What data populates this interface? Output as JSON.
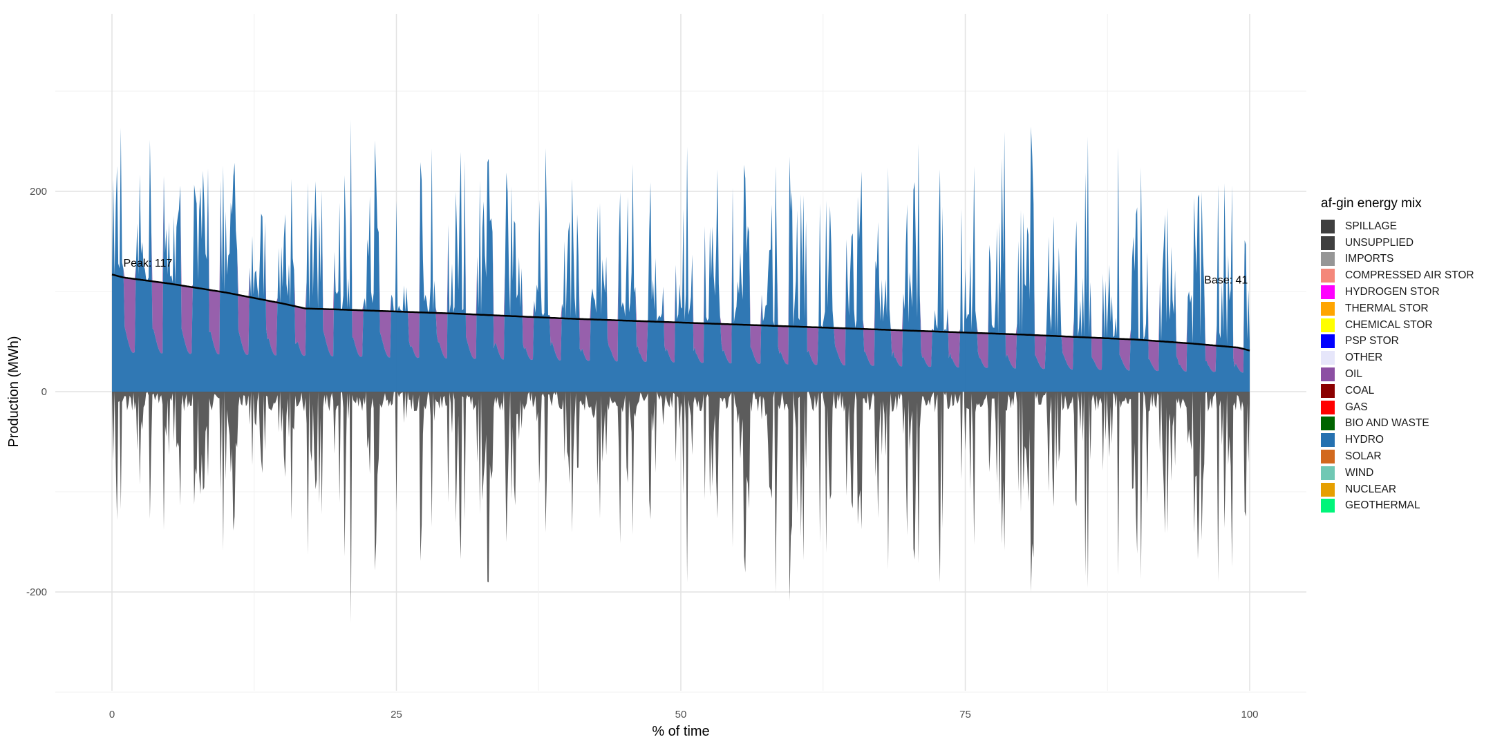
{
  "chart_data": {
    "type": "area",
    "title": "",
    "xlabel": "% of time",
    "ylabel": "Production (MWh)",
    "xlim": [
      0,
      100
    ],
    "ylim": [
      -300,
      300
    ],
    "x_ticks": [
      0,
      25,
      50,
      75,
      100
    ],
    "y_ticks": [
      -200,
      0,
      200
    ],
    "grid": true,
    "legend_title": "af-gin energy mix",
    "legend_position": "right",
    "legend": [
      {
        "name": "SPILLAGE",
        "color": "#3f3f3f"
      },
      {
        "name": "UNSUPPLIED",
        "color": "#3f3f3f"
      },
      {
        "name": "IMPORTS",
        "color": "#969696"
      },
      {
        "name": "COMPRESSED AIR STOR",
        "color": "#f4877a"
      },
      {
        "name": "HYDROGEN STOR",
        "color": "#ff00ff"
      },
      {
        "name": "THERMAL STOR",
        "color": "#ffa500"
      },
      {
        "name": "CHEMICAL STOR",
        "color": "#ffff00"
      },
      {
        "name": "PSP STOR",
        "color": "#0000ff"
      },
      {
        "name": "OTHER",
        "color": "#e6e6fa"
      },
      {
        "name": "OIL",
        "color": "#8c4fa3"
      },
      {
        "name": "COAL",
        "color": "#8b0000"
      },
      {
        "name": "GAS",
        "color": "#ff0000"
      },
      {
        "name": "BIO AND WASTE",
        "color": "#006400"
      },
      {
        "name": "HYDRO",
        "color": "#2571b0"
      },
      {
        "name": "SOLAR",
        "color": "#d2691e"
      },
      {
        "name": "WIND",
        "color": "#70c8b4"
      },
      {
        "name": "NUCLEAR",
        "color": "#e69f00"
      },
      {
        "name": "GEOTHERMAL",
        "color": "#00f57a"
      }
    ],
    "load_curve": {
      "name": "load",
      "x": [
        0,
        1,
        5,
        10,
        15,
        17,
        20,
        25,
        30,
        40,
        50,
        55,
        60,
        70,
        80,
        90,
        95,
        99,
        100
      ],
      "y": [
        117,
        114,
        108,
        99,
        88,
        83,
        82,
        80,
        78,
        73,
        69,
        67,
        65,
        61,
        57,
        52,
        48,
        44,
        41
      ]
    },
    "annotations": [
      {
        "text": "Peak: 117",
        "x": 1,
        "y": 125
      },
      {
        "text": "Base: 41",
        "x": 96,
        "y": 108
      }
    ],
    "cycles": {
      "count": 40,
      "hydro_base_start": 78,
      "hydro_base_end": 38,
      "hydro_peak_max": 280,
      "spillage_max": 260
    }
  }
}
